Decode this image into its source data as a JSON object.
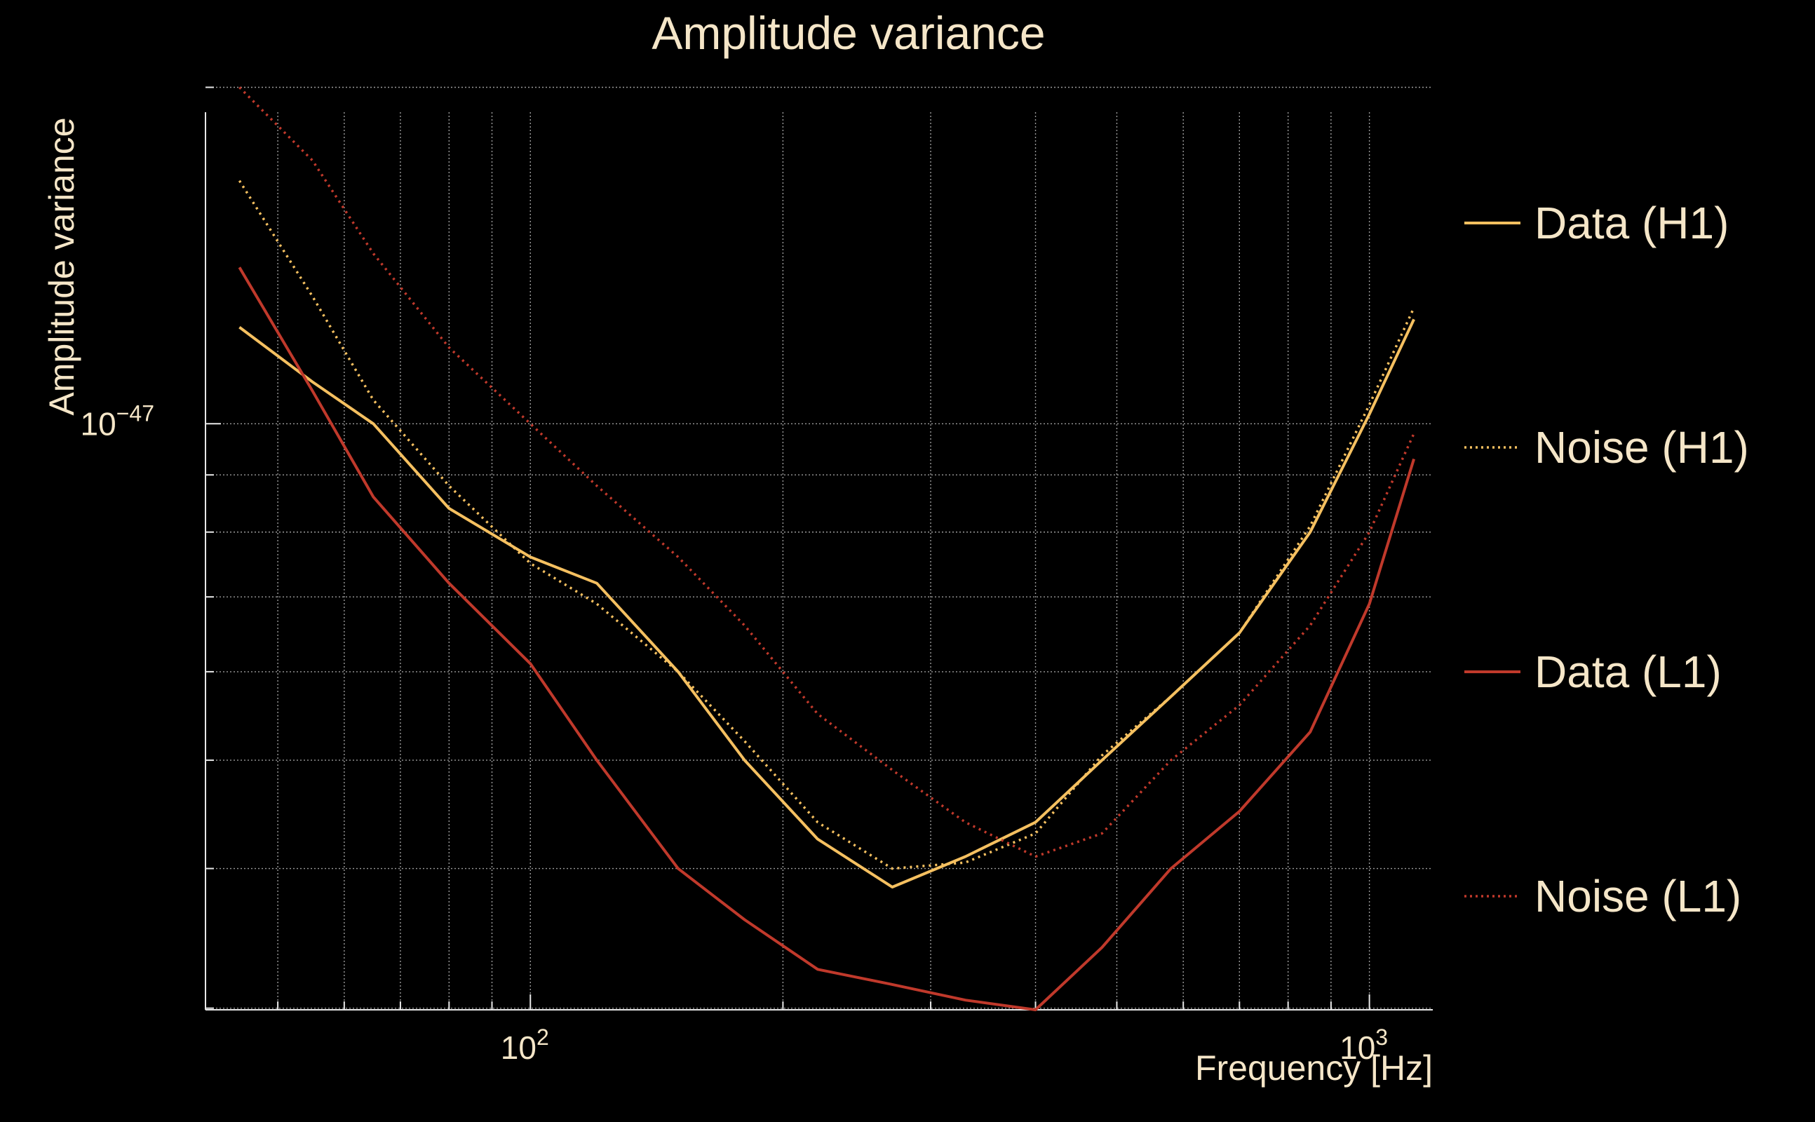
{
  "chart_data": {
    "type": "line",
    "title": "Amplitude variance",
    "xlabel": "Frequency [Hz]",
    "ylabel": "Amplitude variance",
    "x_scale": "log",
    "y_scale": "log",
    "xlim": [
      41,
      1190
    ],
    "ylim": [
      2.99e-48,
      1.9e-47
    ],
    "grid": true,
    "legend_position": "right",
    "x_major_ticks": [
      {
        "value": 100,
        "base": "10",
        "exp": "2"
      },
      {
        "value": 1000,
        "base": "10",
        "exp": "3"
      }
    ],
    "x_minor_ticks": [
      50,
      60,
      70,
      80,
      90,
      200,
      300,
      400,
      500,
      600,
      700,
      800,
      900
    ],
    "y_major_ticks": [
      {
        "value": 1e-47,
        "base": "10",
        "exp": "−47"
      }
    ],
    "y_minor_ticks": [
      3e-48,
      4e-48,
      5e-48,
      6e-48,
      7e-48,
      8e-48,
      9e-48,
      2e-47
    ],
    "x": [
      45,
      55,
      65,
      80,
      100,
      120,
      150,
      180,
      220,
      270,
      330,
      400,
      480,
      580,
      700,
      850,
      1000,
      1130
    ],
    "series": [
      {
        "name": "Data (H1)",
        "color": "#f5c060",
        "style": "solid",
        "values": [
          1.22e-47,
          1.09e-47,
          1e-47,
          8.4e-48,
          7.6e-48,
          7.2e-48,
          6e-48,
          5e-48,
          4.25e-48,
          3.85e-48,
          4.1e-48,
          4.4e-48,
          5e-48,
          5.7e-48,
          6.5e-48,
          8e-48,
          1.02e-47,
          1.24e-47
        ]
      },
      {
        "name": "Noise (H1)",
        "color": "#f5c060",
        "style": "dotted",
        "values": [
          1.65e-47,
          1.3e-47,
          1.05e-47,
          8.8e-48,
          7.5e-48,
          6.9e-48,
          6e-48,
          5.2e-48,
          4.4e-48,
          4e-48,
          4.05e-48,
          4.3e-48,
          5.05e-48,
          5.7e-48,
          6.5e-48,
          8.1e-48,
          1.04e-47,
          1.27e-47
        ]
      },
      {
        "name": "Data (L1)",
        "color": "#c0392b",
        "style": "solid",
        "values": [
          1.38e-47,
          1.07e-47,
          8.6e-48,
          7.2e-48,
          6.1e-48,
          5e-48,
          4e-48,
          3.6e-48,
          3.25e-48,
          3.15e-48,
          3.05e-48,
          2.99e-48,
          3.4e-48,
          4e-48,
          4.5e-48,
          5.3e-48,
          6.9e-48,
          9.3e-48
        ]
      },
      {
        "name": "Noise (L1)",
        "color": "#c0392b",
        "style": "dotted",
        "values": [
          2e-47,
          1.72e-47,
          1.42e-47,
          1.17e-47,
          1e-47,
          8.8e-48,
          7.6e-48,
          6.6e-48,
          5.5e-48,
          4.9e-48,
          4.4e-48,
          4.1e-48,
          4.3e-48,
          5e-48,
          5.6e-48,
          6.6e-48,
          8e-48,
          9.8e-48
        ]
      }
    ]
  }
}
